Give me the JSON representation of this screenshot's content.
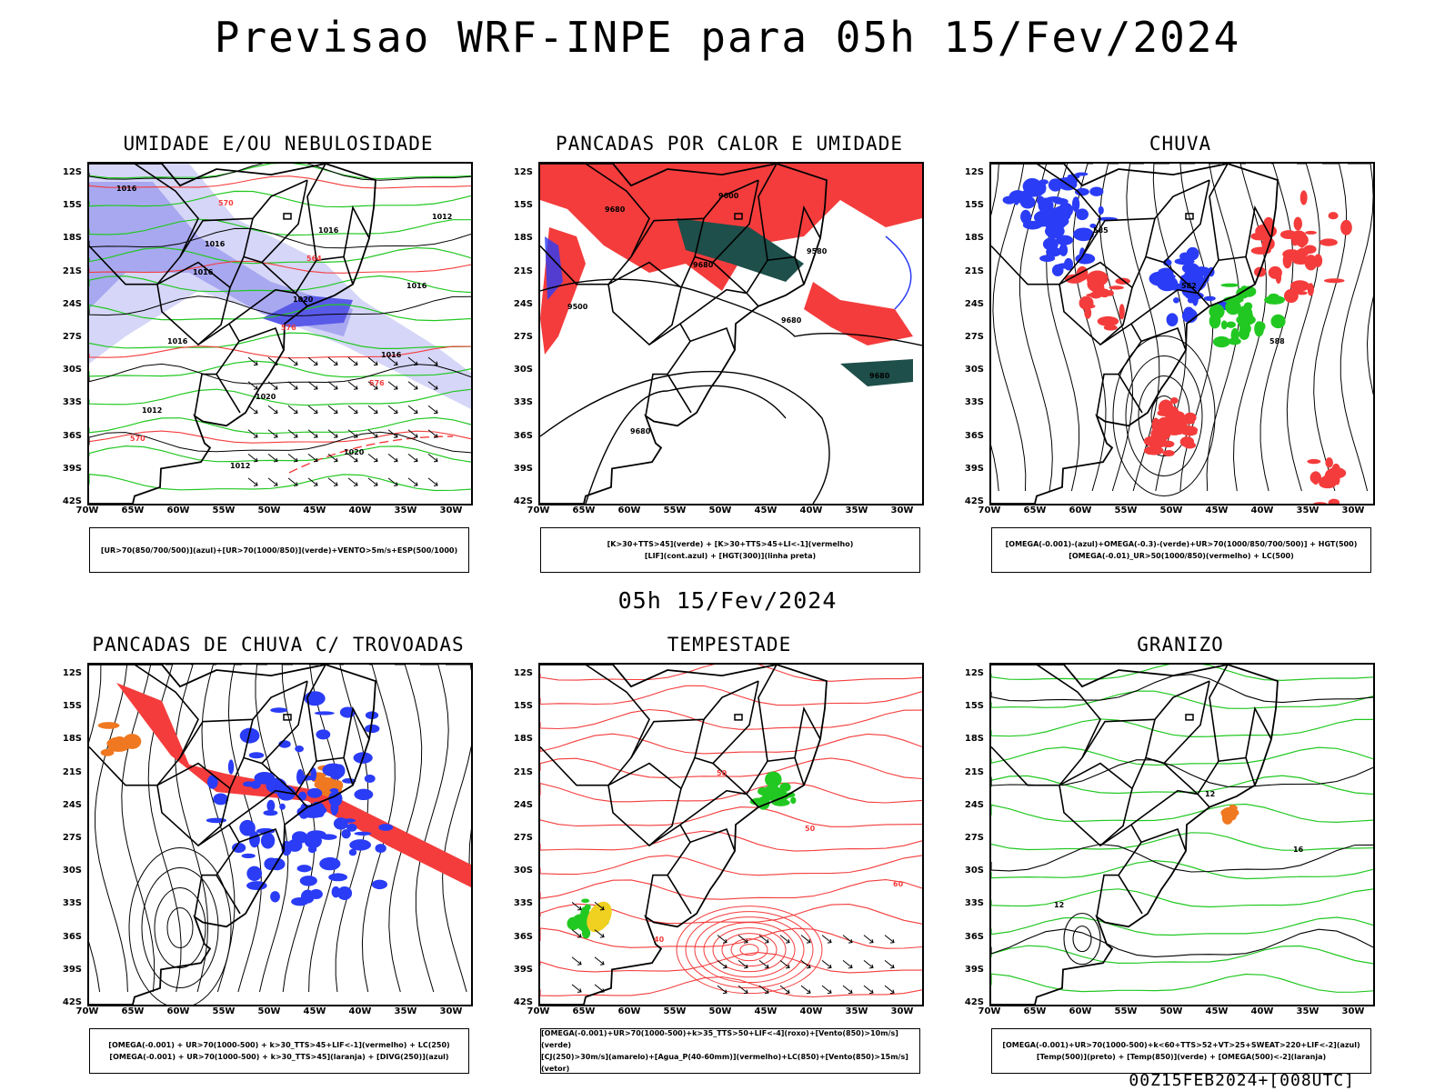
{
  "title": "Previsao WRF-INPE  para 05h 15/Fev/2024",
  "subtitle": "05h 15/Fev/2024",
  "footer": "00Z15FEB2024+[008UTC]",
  "axes": {
    "lat_labels": [
      "12S",
      "15S",
      "18S",
      "21S",
      "24S",
      "27S",
      "30S",
      "33S",
      "36S",
      "39S",
      "42S"
    ],
    "lon_labels": [
      "70W",
      "65W",
      "60W",
      "55W",
      "50W",
      "45W",
      "40W",
      "35W",
      "30W"
    ]
  },
  "colors": {
    "blue": "#2a3cf5",
    "green": "#22c822",
    "red": "#f43c3c",
    "darkgreen": "#1e4f4a",
    "orange": "#f07820",
    "yellow": "#f0d020",
    "lavender": "#a8a8f0",
    "lightlav": "#d6d6f8",
    "black": "#000000"
  },
  "panels": [
    {
      "title": "UMIDADE E/OU NEBULOSIDADE",
      "legend": [
        "[UR>70(850/700/500)](azul)+[UR>70(1000/850)](verde)+VENTO>5m/s+ESP(500/1000)"
      ],
      "contour_labels": [
        "1016",
        "1016",
        "1020",
        "1016",
        "1012",
        "1012",
        "1016",
        "1016",
        "1016",
        "1020",
        "1020",
        "1012",
        "1016",
        "576",
        "576",
        "570",
        "570",
        "564"
      ]
    },
    {
      "title": "PANCADAS POR CALOR E UMIDADE",
      "legend": [
        "[K>30+TTS>45](verde) + [K>30+TTS>45+LI<-1](vermelho)",
        "[LIF](cont.azul) + [HGT(300)](linha preta)"
      ],
      "contour_labels": [
        "9680",
        "9680",
        "9680",
        "9680",
        "9680",
        "9600",
        "9580",
        "9500"
      ]
    },
    {
      "title": "CHUVA",
      "legend": [
        "[OMEGA(-0.001)-(azul)+OMEGA(-0.3)-(verde)+UR>70(1000/850/700/500)] + HGT(500)",
        "[OMEGA(-0.01)_UR>50(1000/850)(vermelho) + LC(500)"
      ],
      "contour_labels": [
        "585",
        "582",
        "588"
      ]
    },
    {
      "title": "PANCADAS DE CHUVA C/ TROVOADAS",
      "legend": [
        "[OMEGA(-0.001) + UR>70(1000-500) + k>30_TTS>45+LIF<-1](vermelho) + LC(250)",
        "[OMEGA(-0.001) + UR>70(1000-500) + k>30_TTS>45](laranja) + [DIVG(250)](azul)"
      ],
      "contour_labels": []
    },
    {
      "title": "TEMPESTADE",
      "legend": [
        "[OMEGA(-0.001)+UR>70(1000-500)+k>35_TTS>50+LIF<-4](roxo)+[Vento(850)>10m/s](verde)",
        "[CJ(250)>30m/s](amarelo)+[Agua_P(40-60mm)](vermelho)+LC(850)+[Vento(850)>15m/s](vetor)"
      ],
      "contour_labels": [
        "50",
        "50",
        "60",
        "40"
      ]
    },
    {
      "title": "GRANIZO",
      "legend": [
        "[OMEGA(-0.001)+UR>70(1000-500)+k<60+TTS>52+VT>25+SWEAT>220+LIF<-2](azul)",
        "[Temp(500)](preto) + [Temp(850)](verde) + [OMEGA(500)<-2](laranja)"
      ],
      "contour_labels": [
        "12",
        "16",
        "12"
      ]
    }
  ]
}
